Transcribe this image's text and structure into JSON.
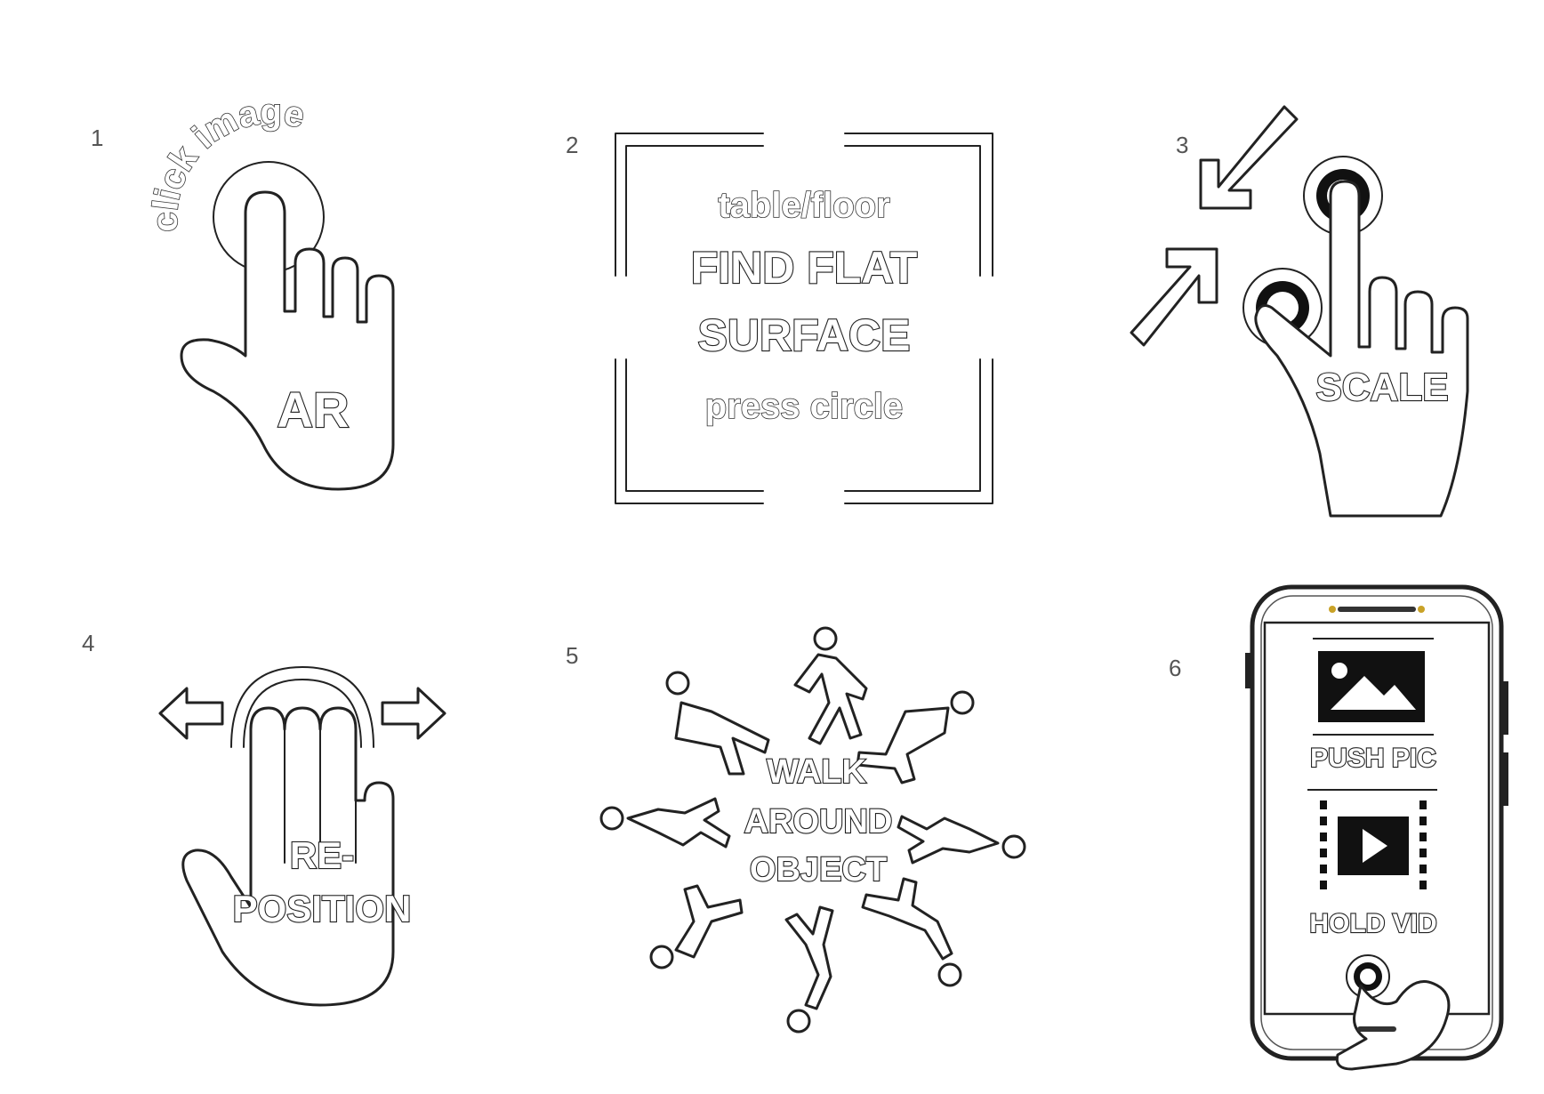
{
  "steps": [
    {
      "number": "1",
      "label_arc": "click image",
      "label_main": "AR"
    },
    {
      "number": "2",
      "line1": "table/floor",
      "line2": "FIND FLAT",
      "line3": "SURFACE",
      "line4": "press circle"
    },
    {
      "number": "3",
      "label_main": "SCALE"
    },
    {
      "number": "4",
      "line1": "RE-",
      "line2": "POSITION"
    },
    {
      "number": "5",
      "line1": "WALK",
      "line2": "AROUND",
      "line3": "OBJECT"
    },
    {
      "number": "6",
      "label_pic": "PUSH PIC",
      "label_vid": "HOLD VID"
    }
  ],
  "icons": [
    "tap-hand-icon",
    "scan-frame-icon",
    "pinch-scale-icon",
    "drag-hand-icon",
    "walking-people-icon",
    "phone-icon",
    "image-icon",
    "video-icon"
  ]
}
